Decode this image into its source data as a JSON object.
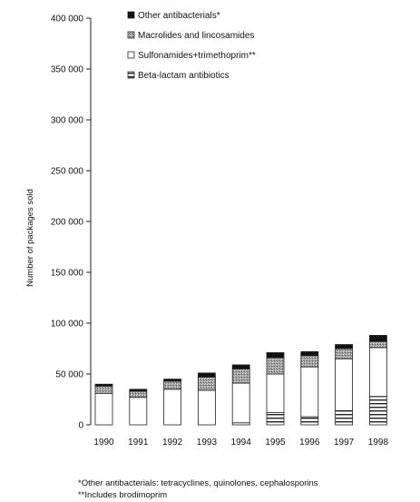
{
  "chart_data": {
    "type": "bar",
    "stacked": true,
    "ylabel": "Number of packages sold",
    "ylim": [
      0,
      400000
    ],
    "yticks": [
      0,
      50000,
      100000,
      150000,
      200000,
      250000,
      300000,
      350000,
      400000
    ],
    "ytick_labels": [
      "0",
      "50 000",
      "100 000",
      "150 000",
      "200 000",
      "250 000",
      "300 000",
      "350 000",
      "400 000"
    ],
    "categories": [
      "1990",
      "1991",
      "1992",
      "1993",
      "1994",
      "1995",
      "1996",
      "1997",
      "1998"
    ],
    "series": [
      {
        "name": "Beta-lactam antibiotics",
        "pattern": "hlines",
        "values": [
          0,
          0,
          0,
          0,
          2000,
          12000,
          8000,
          14000,
          28000
        ]
      },
      {
        "name": "Sulfonamides+trimethoprim**",
        "pattern": "white",
        "values": [
          31000,
          27000,
          35000,
          34000,
          39000,
          38000,
          49000,
          51000,
          48000
        ]
      },
      {
        "name": "Macrolides and lincosamides",
        "pattern": "stipple",
        "values": [
          7000,
          6000,
          8000,
          13000,
          14000,
          16000,
          11000,
          10000,
          6000
        ]
      },
      {
        "name": "Other antibacterials*",
        "pattern": "black",
        "values": [
          2000,
          2000,
          2000,
          4000,
          4000,
          5000,
          4000,
          4000,
          6000
        ]
      }
    ],
    "legend_order": [
      "Other antibacterials*",
      "Macrolides and lincosamides",
      "Sulfonamides+trimethoprim**",
      "Beta-lactam antibiotics"
    ],
    "legend_position": "top-left",
    "grid": false
  },
  "footnotes": [
    "*Other antibacterials: tetracyclines, quinolones, cephalosporins",
    "**Includes brodimoprim"
  ]
}
